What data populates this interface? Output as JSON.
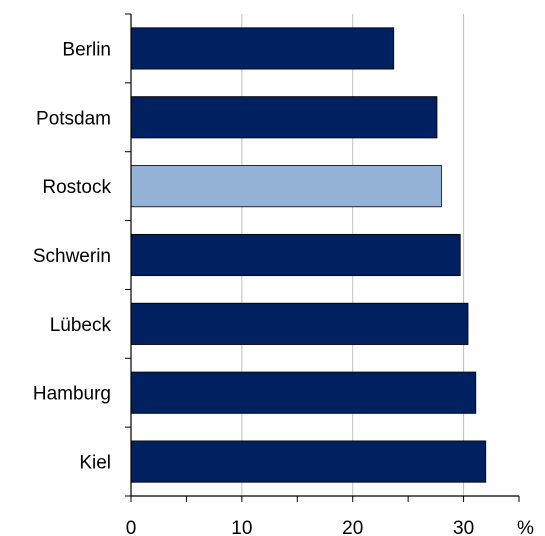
{
  "chart_data": {
    "type": "bar",
    "orientation": "horizontal",
    "categories": [
      "Berlin",
      "Potsdam",
      "Rostock",
      "Schwerin",
      "Lübeck",
      "Hamburg",
      "Kiel"
    ],
    "values": [
      23.7,
      27.6,
      28.0,
      29.7,
      30.4,
      31.1,
      32.0
    ],
    "highlight": "Rostock",
    "xlim": [
      0,
      35
    ],
    "xticks": [
      "0",
      "10",
      "20",
      "30"
    ],
    "x_unit_label": "%",
    "grid": "vertical",
    "colors": {
      "bar": "#002060",
      "highlight": "#95b3d7",
      "grid": "#c0c0c0",
      "axis": "#000000"
    }
  }
}
